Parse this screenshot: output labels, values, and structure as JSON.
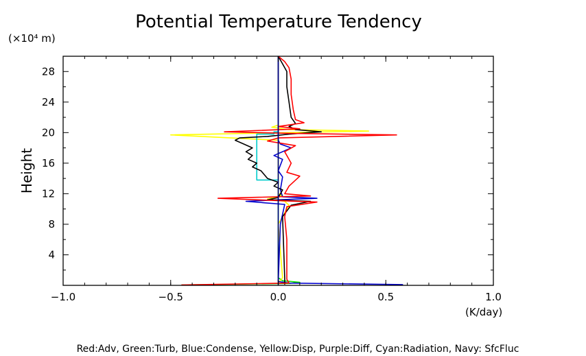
{
  "chart_data": {
    "type": "line",
    "title": "Potential Temperature Tendency",
    "ylabel": "Height",
    "yunit": "(×10⁴ m)",
    "xunit": "(K/day)",
    "legend_text": "Red:Adv, Green:Turb, Blue:Condense, Yellow:Disp, Purple:Diff, Cyan:Radiation, Navy: SfcFluc",
    "xlim": [
      -1.0,
      1.0
    ],
    "ylim": [
      0,
      30
    ],
    "xticks": [
      -1.0,
      -0.5,
      0.0,
      0.5,
      1.0
    ],
    "xtick_labels": [
      "−1.0",
      "−0.5",
      "0.0",
      "0.5",
      "1.0"
    ],
    "yticks": [
      4,
      8,
      12,
      16,
      20,
      24,
      28
    ],
    "ytick_labels": [
      "4",
      "8",
      "12",
      "16",
      "20",
      "24",
      "28"
    ],
    "series": [
      {
        "color": "#00dd00",
        "points": [
          [
            -0.45,
            0.05
          ],
          [
            0.05,
            0.25
          ],
          [
            0.1,
            0.4
          ],
          [
            0.02,
            0.6
          ],
          [
            0.0,
            1.0
          ],
          [
            0.0,
            30.0
          ]
        ]
      },
      {
        "color": "#ffff00",
        "points": [
          [
            0.0,
            0.3
          ],
          [
            0.02,
            1
          ],
          [
            0.0,
            8
          ],
          [
            0.05,
            10.5
          ],
          [
            0.03,
            11
          ],
          [
            -0.05,
            11.3
          ],
          [
            0.02,
            11.8
          ],
          [
            0.0,
            12
          ],
          [
            0.0,
            19
          ],
          [
            -0.5,
            19.7
          ],
          [
            0.05,
            20.0
          ],
          [
            0.42,
            20.2
          ],
          [
            0.05,
            20.4
          ],
          [
            -0.03,
            20.7
          ],
          [
            0.0,
            21.0
          ],
          [
            0.0,
            30.0
          ]
        ]
      },
      {
        "color": "#00cccc",
        "points": [
          [
            0.0,
            13.8
          ],
          [
            -0.1,
            13.8
          ],
          [
            -0.1,
            19.8
          ],
          [
            -0.02,
            19.8
          ],
          [
            -0.02,
            20.1
          ],
          [
            0.0,
            20.1
          ]
        ]
      },
      {
        "color": "#0000cc",
        "points": [
          [
            0.58,
            0.1
          ],
          [
            0.05,
            0.3
          ],
          [
            0.0,
            0.5
          ],
          [
            0.01,
            8
          ],
          [
            0.03,
            10.6
          ],
          [
            -0.15,
            11.0
          ],
          [
            0.0,
            11.2
          ],
          [
            0.18,
            11.4
          ],
          [
            0.02,
            11.6
          ],
          [
            0.01,
            12.5
          ],
          [
            0.02,
            14.2
          ],
          [
            0.0,
            15.0
          ],
          [
            0.02,
            16.5
          ],
          [
            -0.02,
            17.0
          ],
          [
            0.06,
            18.0
          ],
          [
            0.01,
            18.5
          ],
          [
            0.0,
            19.0
          ],
          [
            0.0,
            30.0
          ]
        ]
      },
      {
        "color": "#000000",
        "points": [
          [
            0.03,
            0.1
          ],
          [
            0.03,
            1.0
          ],
          [
            0.02,
            9.0
          ],
          [
            0.06,
            10.5
          ],
          [
            0.15,
            11.0
          ],
          [
            -0.05,
            11.2
          ],
          [
            0.0,
            11.5
          ],
          [
            0.02,
            12.5
          ],
          [
            -0.02,
            13.0
          ],
          [
            0.0,
            13.5
          ],
          [
            -0.05,
            14.0
          ],
          [
            -0.08,
            15.0
          ],
          [
            -0.12,
            15.5
          ],
          [
            -0.1,
            16.0
          ],
          [
            -0.14,
            16.5
          ],
          [
            -0.12,
            17.0
          ],
          [
            -0.15,
            17.5
          ],
          [
            -0.12,
            18.0
          ],
          [
            -0.16,
            18.5
          ],
          [
            -0.2,
            19.0
          ],
          [
            -0.18,
            19.3
          ],
          [
            -0.05,
            19.5
          ],
          [
            0.05,
            19.8
          ],
          [
            0.2,
            20.1
          ],
          [
            0.08,
            20.4
          ],
          [
            0.05,
            20.8
          ],
          [
            0.08,
            21.2
          ],
          [
            0.06,
            22.0
          ],
          [
            0.05,
            24.0
          ],
          [
            0.04,
            26.0
          ],
          [
            0.04,
            28.0
          ],
          [
            0.02,
            29.0
          ],
          [
            0.0,
            30.0
          ]
        ]
      },
      {
        "color": "#ff0000",
        "points": [
          [
            -0.45,
            0.05
          ],
          [
            0.05,
            0.3
          ],
          [
            0.04,
            0.8
          ],
          [
            0.04,
            3.0
          ],
          [
            0.04,
            6.0
          ],
          [
            0.03,
            9.0
          ],
          [
            0.04,
            10.3
          ],
          [
            0.18,
            10.9
          ],
          [
            -0.28,
            11.4
          ],
          [
            0.15,
            11.7
          ],
          [
            0.03,
            12.0
          ],
          [
            0.05,
            13.0
          ],
          [
            0.1,
            14.3
          ],
          [
            0.04,
            14.8
          ],
          [
            0.06,
            16.0
          ],
          [
            0.03,
            17.5
          ],
          [
            0.08,
            18.3
          ],
          [
            -0.05,
            18.9
          ],
          [
            0.0,
            19.3
          ],
          [
            0.55,
            19.7
          ],
          [
            0.05,
            19.9
          ],
          [
            -0.25,
            20.1
          ],
          [
            0.1,
            20.5
          ],
          [
            0.0,
            20.8
          ],
          [
            0.12,
            21.3
          ],
          [
            0.08,
            21.7
          ],
          [
            0.07,
            23.0
          ],
          [
            0.06,
            25.0
          ],
          [
            0.06,
            27.0
          ],
          [
            0.05,
            28.5
          ],
          [
            0.03,
            29.3
          ],
          [
            0.0,
            30.0
          ]
        ]
      },
      {
        "color": "#000080",
        "points": [
          [
            0.0,
            0.0
          ],
          [
            0.0,
            30.0
          ]
        ]
      }
    ]
  }
}
